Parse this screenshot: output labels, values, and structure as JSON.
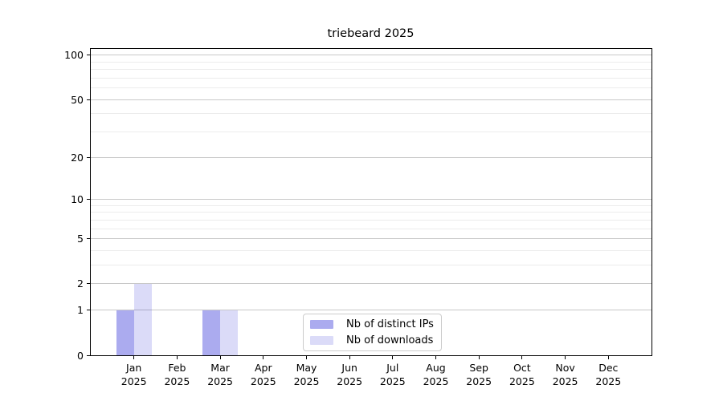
{
  "chart_data": {
    "type": "bar",
    "title": "triebeard 2025",
    "categories": [
      "Jan 2025",
      "Feb 2025",
      "Mar 2025",
      "Apr 2025",
      "May 2025",
      "Jun 2025",
      "Jul 2025",
      "Aug 2025",
      "Sep 2025",
      "Oct 2025",
      "Nov 2025",
      "Dec 2025"
    ],
    "series": [
      {
        "name": "Nb of distinct IPs",
        "values": [
          1,
          0,
          1,
          0,
          0,
          0,
          0,
          0,
          0,
          0,
          0,
          0
        ],
        "color": "#0000cd",
        "alpha": 0.33
      },
      {
        "name": "Nb of downloads",
        "values": [
          2,
          0,
          1,
          0,
          0,
          0,
          0,
          0,
          0,
          0,
          0,
          0
        ],
        "color": "#0000cd",
        "alpha": 0.14
      }
    ],
    "xlabel": "",
    "ylabel": "",
    "yscale": "log1p",
    "ylim": [
      0,
      110
    ],
    "y_major_ticks": [
      0,
      1,
      2,
      5,
      10,
      20,
      50,
      100
    ],
    "y_minor_gridlines": [
      3,
      4,
      6,
      7,
      8,
      9,
      30,
      40,
      60,
      70,
      80,
      90
    ],
    "grid": "horizontal-major-and-minor",
    "legend_position": "lower-center"
  },
  "colors": {
    "background": "#ffffff",
    "axis": "#000000",
    "text": "#000000",
    "grid_major": "#c8c8c8",
    "grid_minor": "#ececec",
    "legend_border": "#cccccc",
    "bar_distinct_ips_rendered": "#aaaaee",
    "bar_downloads_rendered": "#dcdcf8"
  }
}
